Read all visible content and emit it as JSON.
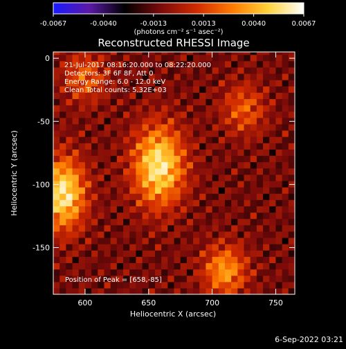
{
  "colorbar": {
    "ticks": [
      "-0.0067",
      "-0.0040",
      "-0.0013",
      "0.0013",
      "0.0040",
      "0.0067"
    ],
    "units": "(photons cm⁻² s⁻¹ asec⁻²)",
    "stops": [
      "#1a1aff",
      "#5b1aa8",
      "#000000",
      "#7a0a0a",
      "#d12a00",
      "#ff7a00",
      "#ffd23a",
      "#ffffff"
    ]
  },
  "chart_data": {
    "type": "heatmap",
    "title": "Reconstructed RHESSI Image",
    "xlabel": "Heliocentric X (arcsec)",
    "ylabel": "Heliocentric Y (arcsec)",
    "xlim": [
      575,
      765
    ],
    "ylim": [
      -187,
      5
    ],
    "xticks": [
      "600",
      "650",
      "700",
      "750"
    ],
    "yticks": [
      "0",
      "-50",
      "-100",
      "-150"
    ],
    "xtick_values": [
      600,
      650,
      700,
      750
    ],
    "ytick_values": [
      0,
      -50,
      -100,
      -150
    ],
    "grid": false,
    "colorbar_range": [
      -0.0067,
      0.0067
    ],
    "sources": [
      {
        "x": 583,
        "y": -107,
        "peak": 0.0067
      },
      {
        "x": 658,
        "y": -85,
        "peak": 0.0067
      },
      {
        "x": 710,
        "y": -168,
        "peak": 0.0045
      },
      {
        "x": 725,
        "y": -40,
        "peak": 0.003
      },
      {
        "x": 600,
        "y": -15,
        "peak": 0.003
      }
    ],
    "annotations": {
      "time": "21-Jul-2017 08:16:20.000 to 08:22:20.000",
      "detectors": "Detectors: 3F 6F 8F, Att 0",
      "energy": "Energy Range: 6.0 - 12.0 keV",
      "clean": "Clean    Total counts: 5.32E+03",
      "peak": "Position of Peak = [658,-85]"
    }
  },
  "footer_date": "6-Sep-2022 03:21"
}
